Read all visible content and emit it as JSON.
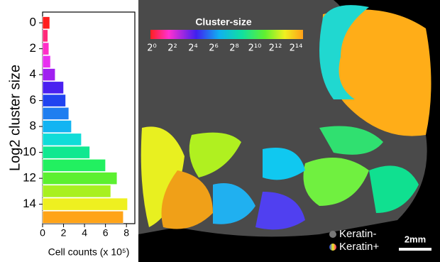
{
  "chart_data": {
    "type": "bar",
    "orientation": "horizontal",
    "ylabel": "Log2 cluster size",
    "xlabel": "Cell counts (x 10⁵)",
    "categories": [
      "0",
      null,
      "2",
      null,
      "4",
      null,
      "6",
      null,
      "8",
      null,
      "10",
      null,
      "12",
      null,
      "14",
      null
    ],
    "values": [
      0.68,
      0.5,
      0.6,
      0.75,
      1.2,
      2.0,
      2.2,
      2.5,
      2.75,
      3.7,
      4.5,
      6.0,
      7.1,
      6.5,
      8.1,
      7.7
    ],
    "colors": [
      "#ff1e1e",
      "#ff2a7a",
      "#ff2ec8",
      "#e830f0",
      "#a020f0",
      "#4a20f0",
      "#2044f0",
      "#1f7ef0",
      "#12b4f2",
      "#10dcd8",
      "#10e890",
      "#22f060",
      "#5cf030",
      "#a8f020",
      "#eef020",
      "#ffa418"
    ],
    "xlim": [
      0,
      8.8
    ],
    "xticks": [
      0,
      2,
      4,
      6,
      8
    ]
  },
  "image": {
    "colorbar_title": "Cluster-size",
    "colorbar_labels": [
      "2⁰",
      "2²",
      "2⁴",
      "2⁶",
      "2⁸",
      "2¹⁰",
      "2¹²",
      "2¹⁴"
    ],
    "legend": [
      "Keratin-",
      "Keratin+"
    ],
    "scale_bar": "2mm"
  }
}
